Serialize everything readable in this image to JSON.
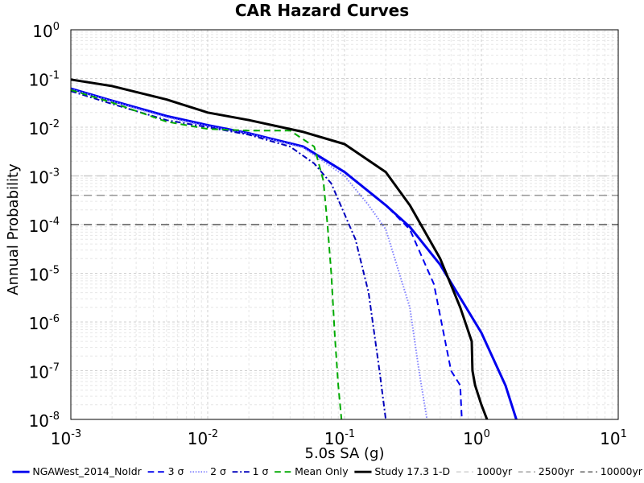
{
  "chart_data": {
    "type": "line",
    "title": "CAR Hazard Curves",
    "xlabel": "5.0s SA (g)",
    "ylabel": "Annual Probability",
    "xscale": "log",
    "yscale": "log",
    "xlim": [
      0.001,
      10
    ],
    "ylim": [
      1e-08,
      1
    ],
    "grid": true,
    "legend_placement": "bottom",
    "x_ticks": [
      {
        "base": "10",
        "exp": "-3"
      },
      {
        "base": "10",
        "exp": "-2"
      },
      {
        "base": "10",
        "exp": "-1"
      },
      {
        "base": "10",
        "exp": "0"
      },
      {
        "base": "10",
        "exp": "1"
      }
    ],
    "y_ticks": [
      {
        "base": "10",
        "exp": "0"
      },
      {
        "base": "10",
        "exp": "-1"
      },
      {
        "base": "10",
        "exp": "-2"
      },
      {
        "base": "10",
        "exp": "-3"
      },
      {
        "base": "10",
        "exp": "-4"
      },
      {
        "base": "10",
        "exp": "-5"
      },
      {
        "base": "10",
        "exp": "-6"
      },
      {
        "base": "10",
        "exp": "-7"
      },
      {
        "base": "10",
        "exp": "-8"
      }
    ],
    "series": [
      {
        "name": "NGAWest_2014_NoIdr",
        "color": "#0000ee",
        "style": "solid",
        "width": 3,
        "x": [
          0.001,
          0.002,
          0.005,
          0.01,
          0.02,
          0.05,
          0.1,
          0.2,
          0.3,
          0.5,
          1.0,
          1.5,
          1.8
        ],
        "y": [
          0.062,
          0.035,
          0.017,
          0.011,
          0.0075,
          0.004,
          0.0012,
          0.00025,
          9e-05,
          1.5e-05,
          6e-07,
          5e-08,
          1e-08
        ]
      },
      {
        "name": "3 σ",
        "color": "#0000ee",
        "style": "dashed",
        "width": 2,
        "x": [
          0.001,
          0.002,
          0.005,
          0.01,
          0.02,
          0.05,
          0.1,
          0.2,
          0.3,
          0.45,
          0.6,
          0.7,
          0.72
        ],
        "y": [
          0.062,
          0.035,
          0.017,
          0.011,
          0.0075,
          0.004,
          0.0012,
          0.00025,
          8e-05,
          6e-06,
          1e-07,
          5e-08,
          1e-08
        ]
      },
      {
        "name": "2 σ",
        "color": "#8080ff",
        "style": "dotted",
        "width": 2,
        "x": [
          0.001,
          0.002,
          0.005,
          0.01,
          0.02,
          0.05,
          0.1,
          0.15,
          0.2,
          0.3,
          0.35,
          0.4
        ],
        "y": [
          0.06,
          0.034,
          0.016,
          0.0105,
          0.0073,
          0.0038,
          0.001,
          0.00025,
          8e-05,
          2e-06,
          1e-07,
          1e-08
        ]
      },
      {
        "name": "1 σ",
        "color": "#0000bb",
        "style": "dashdot",
        "width": 2,
        "x": [
          0.001,
          0.002,
          0.005,
          0.01,
          0.02,
          0.04,
          0.06,
          0.08,
          0.12,
          0.15,
          0.18,
          0.2
        ],
        "y": [
          0.055,
          0.03,
          0.014,
          0.01,
          0.007,
          0.004,
          0.0018,
          0.0007,
          5e-05,
          4e-06,
          1e-07,
          1e-08
        ]
      },
      {
        "name": "Mean Only",
        "color": "#00aa00",
        "style": "dashed",
        "width": 2,
        "x": [
          0.001,
          0.002,
          0.005,
          0.01,
          0.02,
          0.04,
          0.06,
          0.07,
          0.075,
          0.08,
          0.085,
          0.09,
          0.095
        ],
        "y": [
          0.058,
          0.032,
          0.013,
          0.0092,
          0.0085,
          0.0085,
          0.004,
          0.0008,
          0.0001,
          1e-05,
          5e-07,
          5e-08,
          1e-08
        ]
      },
      {
        "name": "Study 17.3 1-D",
        "color": "#000000",
        "style": "solid",
        "width": 3,
        "x": [
          0.001,
          0.002,
          0.005,
          0.01,
          0.02,
          0.05,
          0.1,
          0.2,
          0.3,
          0.5,
          0.7,
          0.85,
          0.86,
          0.9,
          1.0,
          1.1
        ],
        "y": [
          0.095,
          0.07,
          0.037,
          0.02,
          0.014,
          0.008,
          0.0045,
          0.0012,
          0.00025,
          2e-05,
          2e-06,
          4e-07,
          1e-07,
          5e-08,
          2e-08,
          1e-08
        ]
      },
      {
        "name": "1000yr",
        "color": "#cccccc",
        "style": "dashed",
        "width": 1.5,
        "hline": 0.001
      },
      {
        "name": "2500yr",
        "color": "#999999",
        "style": "dashed",
        "width": 1.5,
        "hline": 0.0004
      },
      {
        "name": "10000yr",
        "color": "#555555",
        "style": "dashed",
        "width": 1.5,
        "hline": 0.0001
      }
    ]
  }
}
